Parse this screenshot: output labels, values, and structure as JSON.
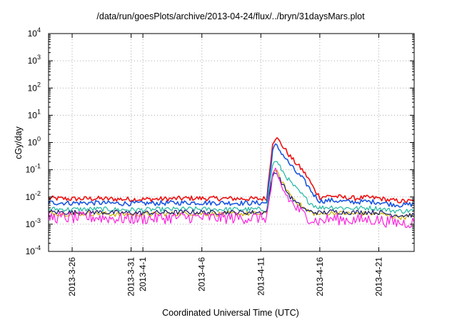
{
  "chart_data": {
    "type": "line",
    "title": "/data/run/goesPlots/archive/2013-04-24/flux/../bryn/31daysMars.plot",
    "xlabel": "Coordinated Universal Time (UTC)",
    "ylabel": "cGy/day",
    "yscale": "log",
    "ylim": [
      0.0001,
      10000
    ],
    "xlim": [
      "2013-03-24",
      "2013-04-24"
    ],
    "grid": true,
    "legend": "none",
    "y_ticks": [
      {
        "base": "10",
        "exp": "4"
      },
      {
        "base": "10",
        "exp": "3"
      },
      {
        "base": "10",
        "exp": "2"
      },
      {
        "base": "10",
        "exp": "1"
      },
      {
        "base": "10",
        "exp": "0"
      },
      {
        "base": "10",
        "exp": "-1"
      },
      {
        "base": "10",
        "exp": "-2"
      },
      {
        "base": "10",
        "exp": "-3"
      },
      {
        "base": "10",
        "exp": "-4"
      }
    ],
    "x_ticks": [
      {
        "date": "2013-03-26",
        "label": "2013-3-26"
      },
      {
        "date": "2013-03-31",
        "label": "2013-3-31"
      },
      {
        "date": "2013-04-01",
        "label": "2013-4-1"
      },
      {
        "date": "2013-04-06",
        "label": "2013-4-6"
      },
      {
        "date": "2013-04-11",
        "label": "2013-4-11"
      },
      {
        "date": "2013-04-16",
        "label": "2013-4-16"
      },
      {
        "date": "2013-04-21",
        "label": "2013-4-21"
      }
    ],
    "series": [
      {
        "color": "#ee1111",
        "values": [
          [
            "2013-03-24",
            0.009
          ],
          [
            "2013-03-26",
            0.0085
          ],
          [
            "2013-03-28",
            0.0088
          ],
          [
            "2013-03-30",
            0.0083
          ],
          [
            "2013-04-01",
            0.0082
          ],
          [
            "2013-04-03",
            0.0085
          ],
          [
            "2013-04-05",
            0.009
          ],
          [
            "2013-04-07",
            0.0088
          ],
          [
            "2013-04-09",
            0.0087
          ],
          [
            "2013-04-11",
            0.0085
          ],
          [
            "2013-04-11T12:00",
            0.009
          ],
          [
            "2013-04-12",
            1.0
          ],
          [
            "2013-04-12T06:00",
            1.5
          ],
          [
            "2013-04-12T12:00",
            1.2
          ],
          [
            "2013-04-13",
            0.6
          ],
          [
            "2013-04-13T12:00",
            0.3
          ],
          [
            "2013-04-14",
            0.17
          ],
          [
            "2013-04-14T12:00",
            0.1
          ],
          [
            "2013-04-15",
            0.05
          ],
          [
            "2013-04-15T12:00",
            0.02
          ],
          [
            "2013-04-16",
            0.01
          ],
          [
            "2013-04-17",
            0.011
          ],
          [
            "2013-04-18",
            0.0095
          ],
          [
            "2013-04-19",
            0.009
          ],
          [
            "2013-04-20",
            0.0095
          ],
          [
            "2013-04-21",
            0.009
          ],
          [
            "2013-04-22",
            0.0075
          ],
          [
            "2013-04-23",
            0.007
          ],
          [
            "2013-04-24",
            0.007
          ]
        ]
      },
      {
        "color": "#1a56e0",
        "values": [
          [
            "2013-03-24",
            0.0062
          ],
          [
            "2013-03-26",
            0.006
          ],
          [
            "2013-03-28",
            0.0061
          ],
          [
            "2013-03-30",
            0.0058
          ],
          [
            "2013-04-01",
            0.0058
          ],
          [
            "2013-04-03",
            0.006
          ],
          [
            "2013-04-05",
            0.0062
          ],
          [
            "2013-04-07",
            0.0061
          ],
          [
            "2013-04-09",
            0.006
          ],
          [
            "2013-04-11",
            0.006
          ],
          [
            "2013-04-11T12:00",
            0.0062
          ],
          [
            "2013-04-12",
            0.5
          ],
          [
            "2013-04-12T06:00",
            0.8
          ],
          [
            "2013-04-12T12:00",
            0.6
          ],
          [
            "2013-04-13",
            0.3
          ],
          [
            "2013-04-13T12:00",
            0.15
          ],
          [
            "2013-04-14",
            0.08
          ],
          [
            "2013-04-14T12:00",
            0.05
          ],
          [
            "2013-04-15",
            0.025
          ],
          [
            "2013-04-15T12:00",
            0.012
          ],
          [
            "2013-04-16",
            0.007
          ],
          [
            "2013-04-17",
            0.0075
          ],
          [
            "2013-04-18",
            0.0068
          ],
          [
            "2013-04-19",
            0.0065
          ],
          [
            "2013-04-20",
            0.0068
          ],
          [
            "2013-04-21",
            0.0065
          ],
          [
            "2013-04-22",
            0.0055
          ],
          [
            "2013-04-23",
            0.005
          ],
          [
            "2013-04-24",
            0.0055
          ]
        ]
      },
      {
        "color": "#22b7a0",
        "values": [
          [
            "2013-03-24",
            0.0036
          ],
          [
            "2013-03-26",
            0.0035
          ],
          [
            "2013-03-28",
            0.0036
          ],
          [
            "2013-03-30",
            0.0034
          ],
          [
            "2013-04-01",
            0.0034
          ],
          [
            "2013-04-03",
            0.0035
          ],
          [
            "2013-04-05",
            0.0036
          ],
          [
            "2013-04-07",
            0.0035
          ],
          [
            "2013-04-09",
            0.0035
          ],
          [
            "2013-04-11",
            0.0035
          ],
          [
            "2013-04-11T12:00",
            0.0036
          ],
          [
            "2013-04-12",
            0.15
          ],
          [
            "2013-04-12T06:00",
            0.22
          ],
          [
            "2013-04-12T12:00",
            0.15
          ],
          [
            "2013-04-13",
            0.07
          ],
          [
            "2013-04-13T12:00",
            0.035
          ],
          [
            "2013-04-14",
            0.02
          ],
          [
            "2013-04-14T12:00",
            0.012
          ],
          [
            "2013-04-15",
            0.007
          ],
          [
            "2013-04-15T12:00",
            0.005
          ],
          [
            "2013-04-16",
            0.004
          ],
          [
            "2013-04-17",
            0.0043
          ],
          [
            "2013-04-18",
            0.004
          ],
          [
            "2013-04-19",
            0.0038
          ],
          [
            "2013-04-20",
            0.004
          ],
          [
            "2013-04-21",
            0.0038
          ],
          [
            "2013-04-22",
            0.0032
          ],
          [
            "2013-04-23",
            0.003
          ],
          [
            "2013-04-24",
            0.0032
          ]
        ]
      },
      {
        "color": "#c8b000",
        "values": [
          [
            "2013-03-24",
            0.0025
          ],
          [
            "2013-03-26",
            0.0024
          ],
          [
            "2013-03-28",
            0.0025
          ],
          [
            "2013-03-30",
            0.0023
          ],
          [
            "2013-04-01",
            0.0023
          ],
          [
            "2013-04-03",
            0.0024
          ],
          [
            "2013-04-05",
            0.0025
          ],
          [
            "2013-04-07",
            0.0024
          ],
          [
            "2013-04-09",
            0.0024
          ],
          [
            "2013-04-11",
            0.0024
          ],
          [
            "2013-04-11T12:00",
            0.0025
          ],
          [
            "2013-04-12",
            0.07
          ],
          [
            "2013-04-12T06:00",
            0.1
          ],
          [
            "2013-04-12T12:00",
            0.06
          ],
          [
            "2013-04-13",
            0.025
          ],
          [
            "2013-04-13T12:00",
            0.012
          ],
          [
            "2013-04-14",
            0.007
          ],
          [
            "2013-04-14T12:00",
            0.0045
          ],
          [
            "2013-04-15",
            0.003
          ],
          [
            "2013-04-15T12:00",
            0.0025
          ],
          [
            "2013-04-16",
            0.0023
          ],
          [
            "2013-04-17",
            0.0026
          ],
          [
            "2013-04-18",
            0.0025
          ],
          [
            "2013-04-19",
            0.0024
          ],
          [
            "2013-04-20",
            0.0025
          ],
          [
            "2013-04-21",
            0.0024
          ],
          [
            "2013-04-22",
            0.002
          ],
          [
            "2013-04-23",
            0.0018
          ],
          [
            "2013-04-24",
            0.002
          ]
        ]
      },
      {
        "color": "#1a1a6e",
        "values": [
          [
            "2013-03-24",
            0.0028
          ],
          [
            "2013-03-26",
            0.0027
          ],
          [
            "2013-03-28",
            0.0028
          ],
          [
            "2013-03-30",
            0.0026
          ],
          [
            "2013-04-01",
            0.0026
          ],
          [
            "2013-04-03",
            0.0027
          ],
          [
            "2013-04-05",
            0.0028
          ],
          [
            "2013-04-07",
            0.0027
          ],
          [
            "2013-04-09",
            0.0027
          ],
          [
            "2013-04-11",
            0.0027
          ],
          [
            "2013-04-11T12:00",
            0.0028
          ],
          [
            "2013-04-12",
            0.06
          ],
          [
            "2013-04-12T06:00",
            0.09
          ],
          [
            "2013-04-12T12:00",
            0.055
          ],
          [
            "2013-04-13",
            0.022
          ],
          [
            "2013-04-13T12:00",
            0.01
          ],
          [
            "2013-04-14",
            0.006
          ],
          [
            "2013-04-14T12:00",
            0.0042
          ],
          [
            "2013-04-15",
            0.003
          ],
          [
            "2013-04-15T12:00",
            0.0028
          ],
          [
            "2013-04-16",
            0.0026
          ],
          [
            "2013-04-17",
            0.0029
          ],
          [
            "2013-04-18",
            0.0028
          ],
          [
            "2013-04-19",
            0.0027
          ],
          [
            "2013-04-20",
            0.0028
          ],
          [
            "2013-04-21",
            0.0027
          ],
          [
            "2013-04-22",
            0.0023
          ],
          [
            "2013-04-23",
            0.0021
          ],
          [
            "2013-04-24",
            0.0022
          ]
        ]
      },
      {
        "color": "#ff22dd",
        "values": [
          [
            "2013-03-24",
            0.0018
          ],
          [
            "2013-03-26",
            0.0017
          ],
          [
            "2013-03-28",
            0.0018
          ],
          [
            "2013-03-30",
            0.0016
          ],
          [
            "2013-04-01",
            0.0016
          ],
          [
            "2013-04-03",
            0.0017
          ],
          [
            "2013-04-05",
            0.0018
          ],
          [
            "2013-04-07",
            0.0017
          ],
          [
            "2013-04-09",
            0.0017
          ],
          [
            "2013-04-11",
            0.0017
          ],
          [
            "2013-04-11T12:00",
            0.0018
          ],
          [
            "2013-04-12",
            0.05
          ],
          [
            "2013-04-12T06:00",
            0.07
          ],
          [
            "2013-04-12T12:00",
            0.04
          ],
          [
            "2013-04-13",
            0.015
          ],
          [
            "2013-04-13T12:00",
            0.007
          ],
          [
            "2013-04-14",
            0.004
          ],
          [
            "2013-04-14T12:00",
            0.0025
          ],
          [
            "2013-04-15",
            0.0018
          ],
          [
            "2013-04-15T12:00",
            0.0014
          ],
          [
            "2013-04-16",
            0.0013
          ],
          [
            "2013-04-17",
            0.0016
          ],
          [
            "2013-04-18",
            0.0015
          ],
          [
            "2013-04-19",
            0.0014
          ],
          [
            "2013-04-20",
            0.0015
          ],
          [
            "2013-04-21",
            0.0014
          ],
          [
            "2013-04-22",
            0.0012
          ],
          [
            "2013-04-23",
            0.0011
          ],
          [
            "2013-04-24",
            0.0012
          ]
        ]
      }
    ]
  }
}
